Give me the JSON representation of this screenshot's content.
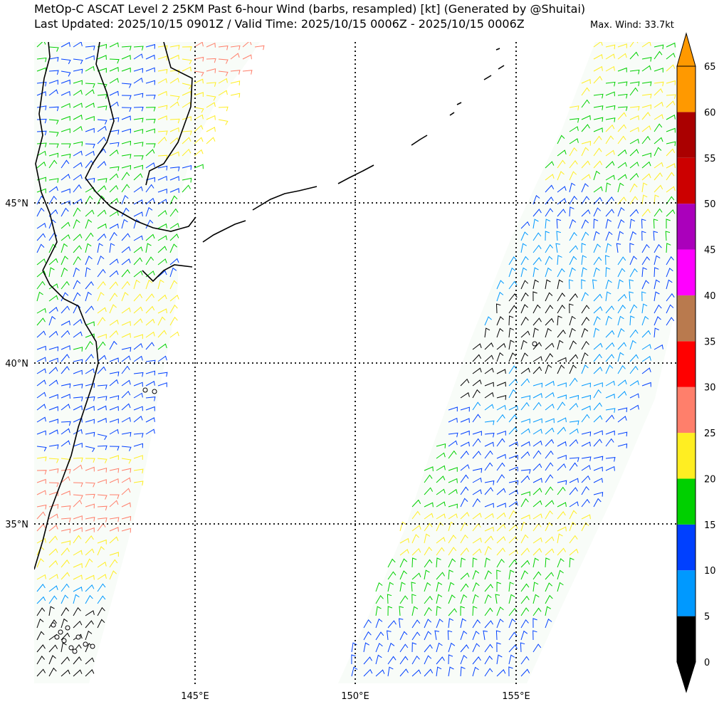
{
  "header": {
    "title_line1": "MetOp-C ASCAT Level 2 25KM Past 6-hour Wind (barbs, resampled) [kt] (Generated by @Shuitai)",
    "title_line2": "Last Updated: 2025/10/15 0901Z / Valid Time: 2025/10/15 0006Z - 2025/10/15 0006Z",
    "max_wind": "Max. Wind: 33.7kt"
  },
  "map": {
    "lat_labels": [
      "45°N",
      "40°N",
      "35°N"
    ],
    "lon_labels": [
      "145°E",
      "150°E",
      "155°E"
    ]
  },
  "colorbar": {
    "tick_labels": [
      "0",
      "5",
      "10",
      "15",
      "20",
      "25",
      "30",
      "35",
      "40",
      "45",
      "50",
      "55",
      "60",
      "65"
    ],
    "bins": [
      {
        "range": "0-5",
        "color": "#000000"
      },
      {
        "range": "5-10",
        "color": "#0099ff"
      },
      {
        "range": "10-15",
        "color": "#0040ff"
      },
      {
        "range": "15-20",
        "color": "#00d000"
      },
      {
        "range": "20-25",
        "color": "#ffee22"
      },
      {
        "range": "25-30",
        "color": "#ff7f6b"
      },
      {
        "range": "30-35",
        "color": "#ff0000"
      },
      {
        "range": "35-40",
        "color": "#b97a4e"
      },
      {
        "range": "40-45",
        "color": "#ff00ff"
      },
      {
        "range": "45-50",
        "color": "#aa00bb"
      },
      {
        "range": "50-55",
        "color": "#cc0000"
      },
      {
        "range": "55-60",
        "color": "#aa0000"
      },
      {
        "range": "60-65",
        "color": "#ff9900"
      }
    ]
  }
}
